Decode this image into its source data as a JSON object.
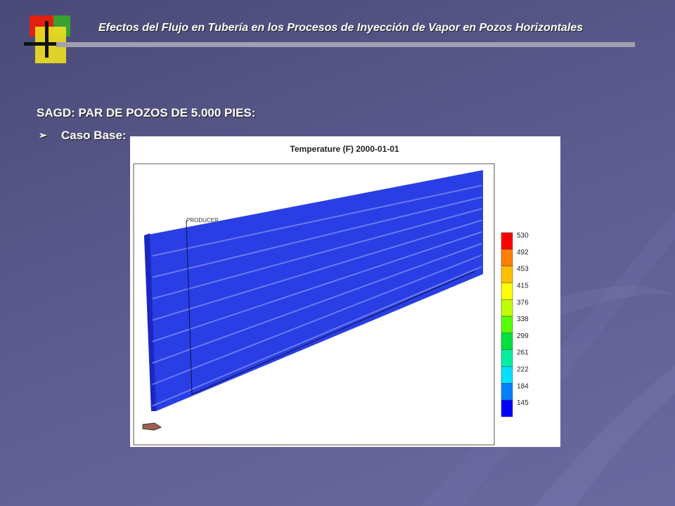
{
  "header": {
    "title": "Efectos del Flujo en Tubería en los Procesos de Inyección de Vapor en Pozos Horizontales"
  },
  "heading": "SAGD: PAR DE POZOS DE 5.000 PIES:",
  "bullet": "Caso Base:",
  "figure": {
    "title": "Temperature (F) 2000-01-01",
    "well_label": "PRODUCER",
    "legend": [
      {
        "label": "530",
        "color": "#ff0000"
      },
      {
        "label": "492",
        "color": "#ff7f00"
      },
      {
        "label": "453",
        "color": "#ffbf00"
      },
      {
        "label": "415",
        "color": "#ffff00"
      },
      {
        "label": "376",
        "color": "#bfff00"
      },
      {
        "label": "338",
        "color": "#55ff00"
      },
      {
        "label": "299",
        "color": "#00e040"
      },
      {
        "label": "261",
        "color": "#00f0a0"
      },
      {
        "label": "222",
        "color": "#00e0ff"
      },
      {
        "label": "184",
        "color": "#0080ff"
      },
      {
        "label": "145",
        "color": "#0000ff"
      }
    ]
  }
}
